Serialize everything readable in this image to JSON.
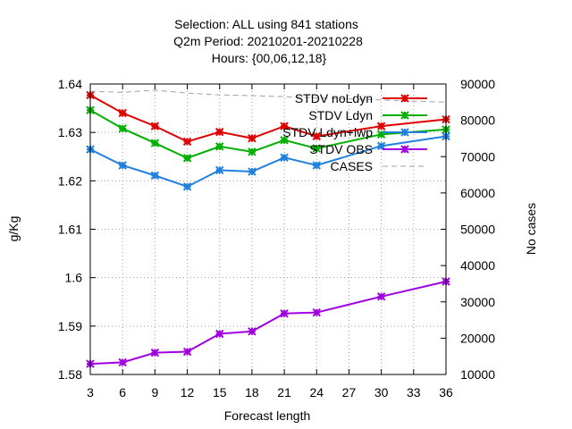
{
  "chart_data": {
    "type": "line",
    "title_lines": [
      "Selection: ALL using   841 stations",
      "Q2m   Period: 20210201-20210228",
      "Hours: {00,06,12,18}"
    ],
    "xlabel": "Forecast length",
    "ylabel": "g/Kg",
    "y2label": "No cases",
    "x": [
      3,
      6,
      9,
      12,
      15,
      18,
      21,
      24,
      27,
      30,
      33,
      36
    ],
    "xticks": [
      "3",
      "6",
      "9",
      "12",
      "15",
      "18",
      "21",
      "24",
      "27",
      "30",
      "33",
      "36"
    ],
    "xlim": [
      3,
      36
    ],
    "ylim": [
      1.58,
      1.64
    ],
    "yticks": [
      "1.58",
      "1.59",
      "1.6",
      "1.61",
      "1.62",
      "1.63",
      "1.64"
    ],
    "y2lim": [
      10000,
      90000
    ],
    "y2ticks": [
      "10000",
      "20000",
      "30000",
      "40000",
      "50000",
      "60000",
      "70000",
      "80000",
      "90000"
    ],
    "grid": true,
    "legend_position": "top-right",
    "series": [
      {
        "name": "STDV noLdyn",
        "color": "#e00000",
        "axis": "y",
        "marker": "x",
        "x": [
          3,
          6,
          9,
          12,
          15,
          18,
          21,
          24,
          30,
          36
        ],
        "values": [
          1.6377,
          1.634,
          1.6313,
          1.6281,
          1.6301,
          1.6288,
          1.6313,
          1.6292,
          1.6313,
          1.6327
        ]
      },
      {
        "name": "STDV Ldyn",
        "color": "#00b000",
        "axis": "y",
        "marker": "x",
        "x": [
          3,
          6,
          9,
          12,
          15,
          18,
          21,
          24,
          30,
          36
        ],
        "values": [
          1.6346,
          1.6308,
          1.6278,
          1.6247,
          1.6271,
          1.626,
          1.6284,
          1.6267,
          1.6296,
          1.6306
        ]
      },
      {
        "name": "STDV Ldyn+lwp",
        "color": "#2080e0",
        "axis": "y",
        "marker": "x",
        "x": [
          3,
          6,
          9,
          12,
          15,
          18,
          21,
          24,
          30,
          36
        ],
        "values": [
          1.6265,
          1.6232,
          1.6211,
          1.6188,
          1.6222,
          1.6219,
          1.6248,
          1.6232,
          1.6272,
          1.6292
        ]
      },
      {
        "name": "STDV OBS",
        "color": "#a000e0",
        "axis": "y",
        "marker": "x",
        "x": [
          3,
          6,
          9,
          12,
          15,
          18,
          21,
          24,
          30,
          36
        ],
        "values": [
          1.5822,
          1.5825,
          1.5845,
          1.5847,
          1.5884,
          1.5889,
          1.5926,
          1.5928,
          1.5961,
          1.5992
        ]
      },
      {
        "name": "CASES",
        "color": "#a0a0a0",
        "axis": "y2",
        "marker": "none",
        "dash": true,
        "x": [
          3,
          6,
          9,
          12,
          15,
          18,
          21,
          24,
          27,
          30,
          33,
          36
        ],
        "values": [
          88000,
          87700,
          88300,
          87500,
          87000,
          86800,
          86500,
          86200,
          85900,
          85600,
          85300,
          85000
        ]
      }
    ]
  }
}
